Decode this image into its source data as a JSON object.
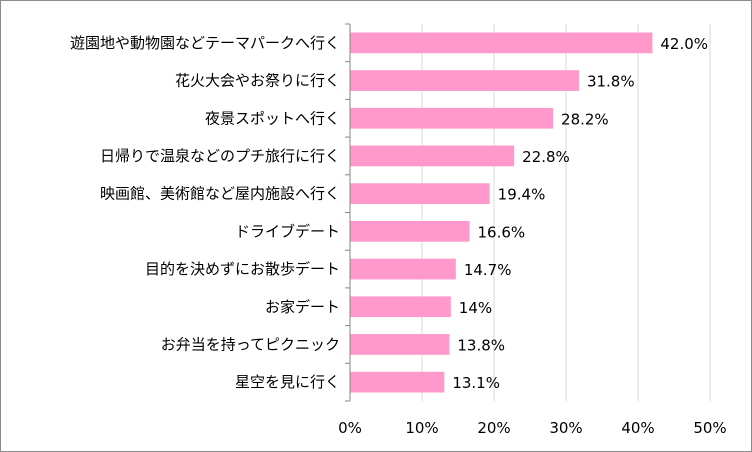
{
  "chart_data": {
    "type": "bar",
    "orientation": "horizontal",
    "categories": [
      "遊園地や動物園などテーマパークへ行く",
      "花火大会やお祭りに行く",
      "夜景スポットへ行く",
      "日帰りで温泉などのプチ旅行に行く",
      "映画館、美術館など屋内施設へ行く",
      "ドライブデート",
      "目的を決めずにお散歩デート",
      "お家デート",
      "お弁当を持ってピクニック",
      "星空を見に行く"
    ],
    "values": [
      42.0,
      31.8,
      28.2,
      22.8,
      19.4,
      16.6,
      14.7,
      14,
      13.8,
      13.1
    ],
    "data_labels": [
      "42.0%",
      "31.8%",
      "28.2%",
      "22.8%",
      "19.4%",
      "16.6%",
      "14.7%",
      "14%",
      "13.8%",
      "13.1%"
    ],
    "xlim": [
      0,
      50
    ],
    "x_ticks": [
      0,
      10,
      20,
      30,
      40,
      50
    ],
    "x_tick_labels": [
      "0%",
      "10%",
      "20%",
      "30%",
      "40%",
      "50%"
    ],
    "grid": "vertical",
    "legend": "none",
    "bar_color": "#ff99cc",
    "grid_color": "#d9d9d9",
    "axis_color": "#868686"
  }
}
